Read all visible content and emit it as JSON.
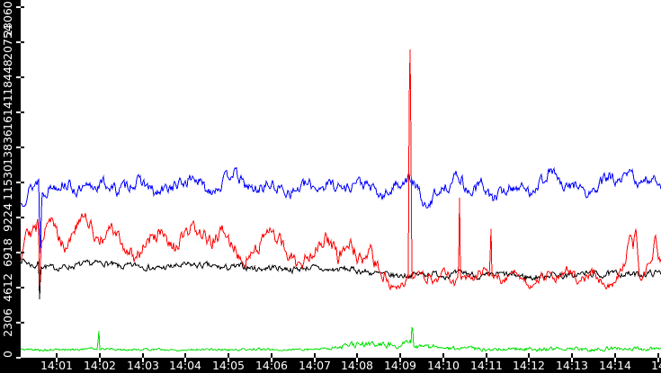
{
  "colors": {
    "plot_background": "#ffffff",
    "axis_band_background": "#000000",
    "axis_text": "#ffffff"
  },
  "chart_data": {
    "type": "line",
    "title": "",
    "xlabel": "",
    "ylabel": "",
    "grid": false,
    "legend": "none",
    "x_axis": {
      "unit": "time (HH:MM)",
      "tick_labels": [
        "14:01",
        "14:02",
        "14:03",
        "14:04",
        "14:05",
        "14:06",
        "14:07",
        "14:08",
        "14:09",
        "14:10",
        "14:11",
        "14:12",
        "14:13",
        "14:14",
        "14"
      ],
      "tick_minutes": [
        1,
        2,
        3,
        4,
        5,
        6,
        7,
        8,
        9,
        10,
        11,
        12,
        13,
        14,
        15
      ],
      "visible_range_minutes": [
        0.16,
        15.07
      ]
    },
    "y_axis": {
      "tick_labels": [
        "0",
        "2306",
        "4612",
        "6918",
        "9224",
        "11530",
        "13836",
        "16141",
        "18448",
        "20754",
        "23060"
      ],
      "tick_values": [
        0,
        2306,
        4612,
        6918,
        9224,
        11530,
        13836,
        16141,
        18448,
        20754,
        23060
      ],
      "range": [
        0,
        23530
      ]
    },
    "note": "red series spike at ~14:09 exceeds 23060 and is clipped at the top of the plot",
    "series": [
      {
        "name": "black-series",
        "color": "#000000",
        "base_points": [
          [
            0.16,
            6500
          ],
          [
            0.35,
            6200
          ],
          [
            0.5,
            6000
          ],
          [
            0.58,
            6300
          ],
          [
            0.605,
            3400
          ],
          [
            0.63,
            6100
          ],
          [
            0.9,
            5900
          ],
          [
            1.3,
            6000
          ],
          [
            1.7,
            6150
          ],
          [
            2.1,
            6250
          ],
          [
            2.5,
            5950
          ],
          [
            2.9,
            6100
          ],
          [
            3.3,
            5850
          ],
          [
            3.7,
            6000
          ],
          [
            4.1,
            6100
          ],
          [
            4.5,
            6050
          ],
          [
            4.9,
            5900
          ],
          [
            5.3,
            6000
          ],
          [
            5.7,
            5850
          ],
          [
            6.1,
            5950
          ],
          [
            6.5,
            5800
          ],
          [
            6.9,
            5950
          ],
          [
            7.3,
            5750
          ],
          [
            7.7,
            5850
          ],
          [
            8.1,
            5700
          ],
          [
            8.5,
            5500
          ],
          [
            8.9,
            5400
          ],
          [
            9.3,
            5450
          ],
          [
            9.7,
            5550
          ],
          [
            10.1,
            5400
          ],
          [
            10.5,
            5600
          ],
          [
            10.9,
            5300
          ],
          [
            11.3,
            5500
          ],
          [
            11.7,
            5400
          ],
          [
            12.1,
            5250
          ],
          [
            12.5,
            5500
          ],
          [
            12.9,
            5350
          ],
          [
            13.3,
            5550
          ],
          [
            13.7,
            5450
          ],
          [
            14.1,
            5550
          ],
          [
            14.5,
            5450
          ],
          [
            14.8,
            5550
          ],
          [
            15.07,
            5600
          ]
        ],
        "noise": {
          "seed": 7,
          "amp_points": [
            [
              0.16,
              250
            ],
            [
              15.07,
              250
            ]
          ]
        }
      },
      {
        "name": "blue-series",
        "color": "#0000ff",
        "base_points": [
          [
            0.16,
            10100
          ],
          [
            0.35,
            11000
          ],
          [
            0.55,
            11600
          ],
          [
            0.585,
            11800
          ],
          [
            0.615,
            5800
          ],
          [
            0.65,
            10800
          ],
          [
            0.9,
            11300
          ],
          [
            1.2,
            11500
          ],
          [
            1.5,
            10900
          ],
          [
            1.8,
            11200
          ],
          [
            2.1,
            11500
          ],
          [
            2.4,
            11000
          ],
          [
            2.7,
            11400
          ],
          [
            3.0,
            11600
          ],
          [
            3.3,
            10700
          ],
          [
            3.6,
            11200
          ],
          [
            3.9,
            11400
          ],
          [
            4.2,
            11900
          ],
          [
            4.5,
            11000
          ],
          [
            4.8,
            11300
          ],
          [
            5.1,
            12300
          ],
          [
            5.35,
            11400
          ],
          [
            5.6,
            11000
          ],
          [
            5.9,
            11400
          ],
          [
            6.2,
            11100
          ],
          [
            6.5,
            10900
          ],
          [
            6.8,
            11400
          ],
          [
            7.1,
            11200
          ],
          [
            7.4,
            11500
          ],
          [
            7.7,
            11100
          ],
          [
            8.0,
            11600
          ],
          [
            8.3,
            11200
          ],
          [
            8.6,
            10500
          ],
          [
            8.9,
            11400
          ],
          [
            9.2,
            11800
          ],
          [
            9.45,
            10900
          ],
          [
            9.62,
            9500
          ],
          [
            9.8,
            10900
          ],
          [
            10.1,
            11300
          ],
          [
            10.35,
            12100
          ],
          [
            10.6,
            10800
          ],
          [
            10.9,
            11500
          ],
          [
            11.15,
            10400
          ],
          [
            11.4,
            11000
          ],
          [
            11.7,
            11300
          ],
          [
            12.0,
            10900
          ],
          [
            12.3,
            11700
          ],
          [
            12.55,
            12400
          ],
          [
            12.8,
            11000
          ],
          [
            13.1,
            11500
          ],
          [
            13.35,
            10600
          ],
          [
            13.6,
            11200
          ],
          [
            13.85,
            12000
          ],
          [
            14.1,
            11400
          ],
          [
            14.35,
            12200
          ],
          [
            14.6,
            11300
          ],
          [
            14.85,
            11900
          ],
          [
            15.07,
            11500
          ]
        ],
        "noise": {
          "seed": 13,
          "amp_points": [
            [
              0.16,
              480
            ],
            [
              15.07,
              480
            ]
          ]
        }
      },
      {
        "name": "green-series",
        "color": "#00e000",
        "base_points": [
          [
            0.16,
            550
          ],
          [
            0.8,
            500
          ],
          [
            1.5,
            550
          ],
          [
            1.955,
            600
          ],
          [
            1.98,
            2050
          ],
          [
            2.005,
            600
          ],
          [
            2.6,
            520
          ],
          [
            3.2,
            560
          ],
          [
            3.8,
            500
          ],
          [
            4.4,
            560
          ],
          [
            5.0,
            510
          ],
          [
            5.6,
            560
          ],
          [
            6.2,
            510
          ],
          [
            6.8,
            560
          ],
          [
            7.4,
            620
          ],
          [
            7.8,
            800
          ],
          [
            8.3,
            900
          ],
          [
            8.8,
            850
          ],
          [
            9.1,
            900
          ],
          [
            9.255,
            950
          ],
          [
            9.28,
            2550
          ],
          [
            9.305,
            850
          ],
          [
            9.6,
            750
          ],
          [
            9.9,
            650
          ],
          [
            10.4,
            600
          ],
          [
            11.0,
            560
          ],
          [
            11.6,
            600
          ],
          [
            12.2,
            550
          ],
          [
            12.8,
            600
          ],
          [
            13.4,
            550
          ],
          [
            14.0,
            620
          ],
          [
            14.5,
            570
          ],
          [
            15.07,
            580
          ]
        ],
        "noise": {
          "seed": 5,
          "amp_points": [
            [
              0.16,
              95
            ],
            [
              7.4,
              95
            ],
            [
              7.7,
              240
            ],
            [
              9.5,
              240
            ],
            [
              9.8,
              160
            ],
            [
              15.07,
              150
            ]
          ]
        }
      },
      {
        "name": "red-series",
        "color": "#ff0000",
        "base_points": [
          [
            0.16,
            6600
          ],
          [
            0.3,
            8800
          ],
          [
            0.45,
            8200
          ],
          [
            0.575,
            8800
          ],
          [
            0.605,
            4300
          ],
          [
            0.64,
            7800
          ],
          [
            0.8,
            9400
          ],
          [
            1.0,
            8300
          ],
          [
            1.2,
            7300
          ],
          [
            1.45,
            8600
          ],
          [
            1.65,
            9300
          ],
          [
            1.85,
            8300
          ],
          [
            2.05,
            7600
          ],
          [
            2.3,
            8500
          ],
          [
            2.55,
            7300
          ],
          [
            2.85,
            6600
          ],
          [
            3.1,
            7700
          ],
          [
            3.4,
            8200
          ],
          [
            3.7,
            7000
          ],
          [
            3.95,
            7900
          ],
          [
            4.25,
            8600
          ],
          [
            4.55,
            7500
          ],
          [
            4.85,
            8300
          ],
          [
            5.15,
            7100
          ],
          [
            5.45,
            6400
          ],
          [
            5.75,
            7700
          ],
          [
            6.05,
            8200
          ],
          [
            6.35,
            7000
          ],
          [
            6.65,
            6000
          ],
          [
            6.95,
            7100
          ],
          [
            7.25,
            7900
          ],
          [
            7.55,
            6600
          ],
          [
            7.85,
            7400
          ],
          [
            8.1,
            6100
          ],
          [
            8.3,
            6900
          ],
          [
            8.5,
            5700
          ],
          [
            8.75,
            5000
          ],
          [
            9.0,
            4800
          ],
          [
            9.19,
            5300
          ],
          [
            9.215,
            23500
          ],
          [
            9.24,
            16800
          ],
          [
            9.27,
            5300
          ],
          [
            9.5,
            5400
          ],
          [
            9.8,
            5100
          ],
          [
            10.05,
            5600
          ],
          [
            10.25,
            4900
          ],
          [
            10.355,
            5400
          ],
          [
            10.375,
            11500
          ],
          [
            10.4,
            5400
          ],
          [
            10.7,
            5200
          ],
          [
            10.95,
            5800
          ],
          [
            11.085,
            5600
          ],
          [
            11.105,
            9300
          ],
          [
            11.13,
            5500
          ],
          [
            11.4,
            5100
          ],
          [
            11.7,
            5700
          ],
          [
            12.0,
            4700
          ],
          [
            12.3,
            5500
          ],
          [
            12.6,
            5200
          ],
          [
            12.9,
            5800
          ],
          [
            13.2,
            5000
          ],
          [
            13.5,
            5600
          ],
          [
            13.8,
            4500
          ],
          [
            14.05,
            5300
          ],
          [
            14.25,
            6300
          ],
          [
            14.35,
            8300
          ],
          [
            14.42,
            7200
          ],
          [
            14.48,
            8700
          ],
          [
            14.57,
            5100
          ],
          [
            14.72,
            5700
          ],
          [
            14.87,
            6600
          ],
          [
            14.93,
            8300
          ],
          [
            15.0,
            6200
          ],
          [
            15.07,
            6300
          ]
        ],
        "noise": {
          "seed": 29,
          "amp_points": [
            [
              0.16,
              600
            ],
            [
              8.4,
              600
            ],
            [
              8.9,
              420
            ],
            [
              9.35,
              380
            ],
            [
              15.07,
              390
            ]
          ]
        }
      }
    ]
  }
}
